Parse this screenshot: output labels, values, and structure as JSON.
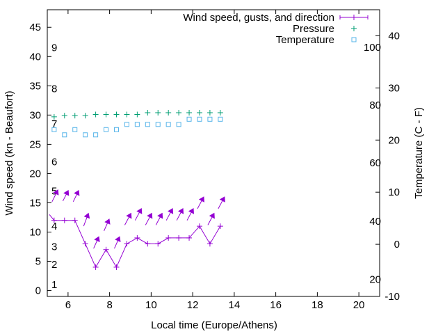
{
  "chart_data": {
    "type": "line",
    "title": "",
    "xlabel": "Local time (Europe/Athens)",
    "ylabel": "Wind speed (kn - Beaufort)",
    "y2label": "Temperature (C - F)",
    "xlim": [
      5,
      21
    ],
    "ylim": [
      -1,
      48
    ],
    "y2lim": [
      -10,
      45
    ],
    "grid": false,
    "legend_position": "top-right",
    "x_ticks": [
      6,
      8,
      10,
      12,
      14,
      16,
      18,
      20
    ],
    "y_ticks": [
      0,
      5,
      10,
      15,
      20,
      25,
      30,
      35,
      40,
      45
    ],
    "y2_ticks": [
      -10,
      0,
      10,
      20,
      30,
      40
    ],
    "beaufort_labels": [
      {
        "label": "1",
        "kn": 1
      },
      {
        "label": "2",
        "kn": 4.5
      },
      {
        "label": "3",
        "kn": 7.5
      },
      {
        "label": "4",
        "kn": 11
      },
      {
        "label": "5",
        "kn": 17
      },
      {
        "label": "6",
        "kn": 22
      },
      {
        "label": "7",
        "kn": 28.5
      },
      {
        "label": "8",
        "kn": 34.5
      },
      {
        "label": "9",
        "kn": 41.5
      }
    ],
    "fahrenheit_labels": [
      {
        "label": "20",
        "c": -6.7
      },
      {
        "label": "40",
        "c": 4.4
      },
      {
        "label": "60",
        "c": 15.6
      },
      {
        "label": "80",
        "c": 26.7
      },
      {
        "label": "100",
        "c": 37.8
      }
    ],
    "series": [
      {
        "name": "Wind speed, gusts, and direction",
        "color": "#9400d3",
        "axis": "y1",
        "x": [
          5.1,
          5.33,
          5.83,
          6.33,
          6.83,
          7.33,
          7.83,
          8.33,
          8.83,
          9.33,
          9.83,
          10.33,
          10.83,
          11.33,
          11.83,
          12.33,
          12.83,
          13.33
        ],
        "values": [
          13,
          12,
          12,
          12,
          8,
          4,
          7,
          4,
          8,
          9,
          8,
          8,
          9,
          9,
          9,
          11,
          8,
          11
        ],
        "direction_arrows": [
          {
            "x": 5.33,
            "tail": [
              -0.1,
              15.2
            ],
            "head": [
              0.18,
              17.2
            ]
          },
          {
            "x": 5.83,
            "tail": [
              -0.08,
              15.3
            ],
            "head": [
              0.18,
              17.1
            ]
          },
          {
            "x": 6.33,
            "tail": [
              -0.08,
              15.2
            ],
            "head": [
              0.18,
              17.1
            ]
          },
          {
            "x": 6.83,
            "tail": [
              -0.08,
              11.0
            ],
            "head": [
              0.15,
              13.2
            ]
          },
          {
            "x": 7.33,
            "tail": [
              -0.1,
              7.2
            ],
            "head": [
              0.15,
              9.2
            ]
          },
          {
            "x": 7.83,
            "tail": [
              -0.1,
              10.2
            ],
            "head": [
              0.15,
              12.2
            ]
          },
          {
            "x": 8.33,
            "tail": [
              -0.1,
              7.2
            ],
            "head": [
              0.15,
              9.2
            ]
          },
          {
            "x": 8.83,
            "tail": [
              -0.1,
              11.2
            ],
            "head": [
              0.2,
              13.2
            ]
          },
          {
            "x": 9.33,
            "tail": [
              -0.1,
              12.0
            ],
            "head": [
              0.2,
              14.0
            ]
          },
          {
            "x": 9.83,
            "tail": [
              -0.1,
              11.2
            ],
            "head": [
              0.2,
              13.2
            ]
          },
          {
            "x": 10.33,
            "tail": [
              -0.1,
              11.2
            ],
            "head": [
              0.2,
              13.2
            ]
          },
          {
            "x": 10.83,
            "tail": [
              -0.1,
              12.0
            ],
            "head": [
              0.2,
              14.0
            ]
          },
          {
            "x": 11.33,
            "tail": [
              -0.1,
              12.0
            ],
            "head": [
              0.2,
              14.0
            ]
          },
          {
            "x": 11.83,
            "tail": [
              -0.1,
              12.0
            ],
            "head": [
              0.2,
              14.0
            ]
          },
          {
            "x": 12.33,
            "tail": [
              -0.1,
              14.0
            ],
            "head": [
              0.2,
              16.0
            ]
          },
          {
            "x": 12.83,
            "tail": [
              -0.1,
              11.2
            ],
            "head": [
              0.2,
              13.2
            ]
          },
          {
            "x": 13.33,
            "tail": [
              -0.1,
              14.0
            ],
            "head": [
              0.2,
              16.0
            ]
          }
        ]
      },
      {
        "name": "Pressure",
        "color": "#009e73",
        "axis": "y1",
        "x": [
          5.33,
          5.83,
          6.33,
          6.83,
          7.33,
          7.83,
          8.33,
          8.83,
          9.33,
          9.83,
          10.33,
          10.83,
          11.33,
          11.83,
          12.33,
          12.83,
          13.33
        ],
        "values": [
          29.7,
          29.9,
          29.9,
          29.9,
          30.1,
          30.1,
          30.1,
          30.1,
          30.1,
          30.4,
          30.4,
          30.4,
          30.4,
          30.4,
          30.4,
          30.4,
          30.4
        ]
      },
      {
        "name": "Temperature",
        "color": "#56b4e9",
        "axis": "y2",
        "x": [
          5.33,
          5.83,
          6.33,
          6.83,
          7.33,
          7.83,
          8.33,
          8.83,
          9.33,
          9.83,
          10.33,
          10.83,
          11.33,
          11.83,
          12.33,
          12.83,
          13.33
        ],
        "values": [
          22,
          21,
          22,
          21,
          21,
          22,
          22,
          23,
          23,
          23,
          23,
          23,
          23,
          24,
          24,
          24,
          24
        ]
      }
    ]
  }
}
